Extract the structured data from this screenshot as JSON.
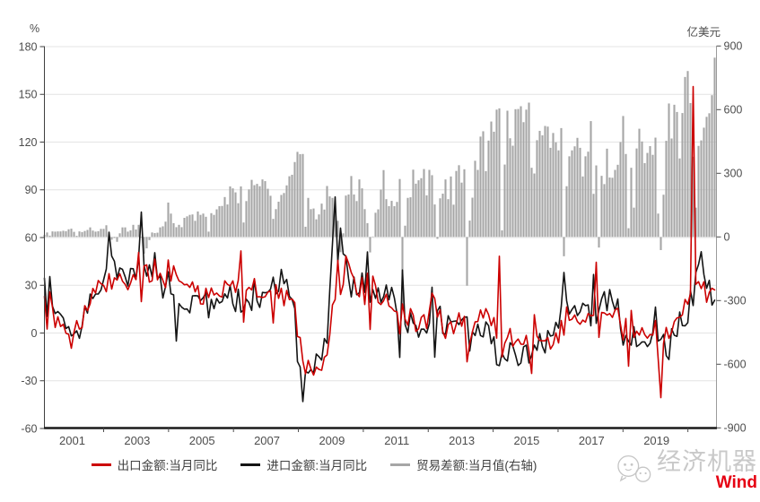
{
  "axes": {
    "left_unit": "%",
    "right_unit": "亿美元",
    "left_ticks": [
      180,
      150,
      120,
      90,
      60,
      30,
      0,
      -30,
      -60
    ],
    "right_ticks": [
      900,
      600,
      300,
      0,
      -300,
      -600,
      -900
    ],
    "x_labels": [
      "2001",
      "2003",
      "2005",
      "2007",
      "2009",
      "2011",
      "2013",
      "2015",
      "2017",
      "2019"
    ]
  },
  "watermark": {
    "brand": "经济机器",
    "vendor": "Wind"
  },
  "chart_data": {
    "type": "combo",
    "frequency": "monthly",
    "x_start": "2001-01",
    "x_end": "2021-10",
    "grid": "horizontal-only",
    "legend_position": "bottom",
    "left_axis": {
      "unit": "%",
      "min": -60,
      "max": 180,
      "tick_step": 30
    },
    "right_axis": {
      "unit": "亿美元",
      "min": -900,
      "max": 900,
      "tick_step": 300
    },
    "series": [
      {
        "name": "出口金额:当月同比",
        "key": "export-yoy",
        "type": "line",
        "axis": "left",
        "color": "#cc0000",
        "values": [
          23,
          2.5,
          25.9,
          16.2,
          3.5,
          10.2,
          4.1,
          5.5,
          -0.1,
          -0.8,
          -9.6,
          0.6,
          7.8,
          2.5,
          3.4,
          17.2,
          14.1,
          18.4,
          28,
          25.1,
          33,
          31,
          29.9,
          26,
          37.3,
          27.6,
          34.7,
          33.3,
          37.3,
          32.6,
          30.6,
          27.2,
          31.4,
          36.7,
          33.6,
          50.7,
          19.8,
          42,
          42.8,
          32,
          32.8,
          46.5,
          33.4,
          37.5,
          33.1,
          28.5,
          45.9,
          32.7,
          42.2,
          36.6,
          32.8,
          31.9,
          30.3,
          30.6,
          28.7,
          32.1,
          25.9,
          29.7,
          18.3,
          18.2,
          28.1,
          22.3,
          28.3,
          23.9,
          25.1,
          23.3,
          22.6,
          32.8,
          30.6,
          29.6,
          32.8,
          25.6,
          33,
          51.6,
          6.9,
          26.8,
          28.7,
          27.1,
          34.2,
          22.7,
          22.8,
          22.3,
          22.8,
          25.7,
          26.5,
          6.3,
          30.3,
          21.8,
          28.1,
          17.2,
          26.7,
          21,
          21.4,
          19.1,
          -2.2,
          -2.8,
          -17.5,
          -25.7,
          -17.2,
          -22.6,
          -26.4,
          -21.4,
          -22.9,
          -23.4,
          -15.2,
          -13.8,
          -1.2,
          17.7,
          21,
          45.7,
          24.2,
          30.4,
          48.4,
          43.9,
          38,
          34.3,
          25.1,
          22.8,
          34.9,
          17.9,
          37.6,
          2.3,
          35.8,
          29.8,
          19.3,
          17.9,
          20.3,
          24.4,
          17,
          15.8,
          13.8,
          13.3,
          -0.5,
          18.3,
          8.8,
          4.9,
          15.3,
          11.3,
          1,
          2.7,
          9.8,
          11.5,
          2.8,
          14,
          25,
          21.7,
          10,
          14.6,
          0.9,
          -3.3,
          5.1,
          7.1,
          -0.4,
          5.6,
          12.7,
          4.3,
          10.5,
          -18.1,
          -6.6,
          0.8,
          7,
          7.2,
          14.5,
          9.4,
          15.3,
          11.6,
          4.7,
          9.7,
          -3.2,
          48.3,
          -15,
          -6.5,
          -2.8,
          2.8,
          -8.4,
          -5.6,
          -3.8,
          -7,
          -7.1,
          -1.5,
          -11.5,
          -25.4,
          11.5,
          -2,
          -4.7,
          -4.9,
          -4.9,
          -2.8,
          -10,
          -7.3,
          0.1,
          -6.2,
          7.9,
          -1.3,
          16.4,
          8,
          8.7,
          11.3,
          7.2,
          5.5,
          8.1,
          6.9,
          12.3,
          10.9,
          11.1,
          44.5,
          -2.7,
          12.9,
          12.6,
          11.3,
          12.2,
          9.8,
          14.5,
          15.6,
          5.4,
          -4.4,
          9.1,
          -20.8,
          14.2,
          -2.7,
          1.1,
          -1.3,
          3.3,
          -1,
          -3.2,
          -0.9,
          -1.3,
          7.9,
          -16,
          -40.6,
          -6.6,
          3.5,
          -3.3,
          0.5,
          7.2,
          9.5,
          9.9,
          11.4,
          21.1,
          18.1,
          24.8,
          154.9,
          30.6,
          32.3,
          27.9,
          32.2,
          19.3,
          25.6,
          28.1,
          27.1
        ]
      },
      {
        "name": "进口金额:当月同比",
        "key": "import-yoy",
        "type": "line",
        "axis": "left",
        "color": "#141414",
        "values": [
          34.5,
          10.5,
          35.5,
          16.8,
          12.2,
          13.5,
          11.8,
          9.5,
          2.9,
          4,
          -1.8,
          -0.5,
          1.4,
          -3.3,
          4.5,
          17,
          12.5,
          24.5,
          21.7,
          24.5,
          24.5,
          27,
          33.5,
          40.3,
          63.4,
          48.3,
          45.1,
          34.4,
          40.9,
          40,
          35.3,
          29.6,
          40.5,
          40.4,
          33.9,
          47.4,
          76,
          42.5,
          35.8,
          42.8,
          35.4,
          50.5,
          34.1,
          35.8,
          22,
          29.3,
          38.5,
          24.6,
          24,
          -5,
          18.5,
          16.2,
          15,
          15.1,
          12.7,
          23.4,
          23.5,
          23.3,
          20.4,
          22.2,
          25.4,
          9.6,
          21.1,
          15.3,
          21.7,
          18.9,
          19.8,
          24.6,
          22,
          29.8,
          18.3,
          13.5,
          27.5,
          13.1,
          14.5,
          21.3,
          19.1,
          14.2,
          33.7,
          20.1,
          16.1,
          25.5,
          25.3,
          25.7,
          27.6,
          35.1,
          24.6,
          26.3,
          40,
          31,
          33.7,
          23.1,
          21.2,
          15.4,
          -17.9,
          -21.3,
          -43.1,
          -24.1,
          -25.1,
          -23,
          -25.2,
          -13.2,
          -14.9,
          -17,
          -3.5,
          -6.4,
          26.7,
          55.9,
          85.5,
          44.7,
          66,
          49.7,
          48.3,
          34.1,
          22.7,
          35.2,
          24.1,
          25.3,
          37.7,
          25.6,
          51,
          19.4,
          27.3,
          21.8,
          28.4,
          19.3,
          22.9,
          30.2,
          20.9,
          28.7,
          22.1,
          11.8,
          -15.3,
          39.6,
          5.3,
          0.3,
          12.7,
          6.3,
          4.7,
          -2.6,
          2.4,
          2.4,
          0,
          6,
          28.8,
          -15.2,
          14.1,
          16.8,
          -0.3,
          -0.7,
          10.9,
          7,
          7.4,
          7.6,
          5.3,
          8.3,
          10,
          10.1,
          -11.3,
          0.8,
          -1.6,
          5.5,
          -1.6,
          -2.4,
          7,
          4.6,
          -6.7,
          -2.4,
          -19.9,
          -20.5,
          -12.7,
          -16.2,
          -17.6,
          -6.1,
          -8.1,
          -13.8,
          -20.4,
          -18.8,
          -8.7,
          -7.6,
          -18.8,
          -13.8,
          -7.6,
          -10.9,
          -0.4,
          -8.4,
          -12.5,
          1.5,
          -1.9,
          -1.4,
          6.7,
          3.1,
          16.7,
          38.1,
          20.3,
          11.9,
          14.8,
          17.2,
          11,
          13.3,
          18.7,
          17.2,
          17.7,
          4.5,
          36.8,
          6.1,
          14.4,
          21.5,
          26,
          14.1,
          27.3,
          19.9,
          14.3,
          21.4,
          3,
          -7.6,
          -1.5,
          -5.2,
          -7.6,
          4,
          -8.5,
          -7.3,
          -5.6,
          -5.6,
          -8.5,
          -6.4,
          0.3,
          16.3,
          -5,
          -4,
          -0.9,
          -14.2,
          -16.7,
          2.7,
          -1.4,
          -2.1,
          13.2,
          4.7,
          4.5,
          6.5,
          26.6,
          17.3,
          38.1,
          43.1,
          51.1,
          36.7,
          28.1,
          33.1,
          17.6,
          20.6
        ]
      },
      {
        "name": "贸易差额:当月值(右轴)",
        "key": "trade-balance",
        "type": "bar",
        "axis": "right",
        "color": "#a6a6a6",
        "values": [
          10,
          21,
          6,
          26,
          25,
          26,
          26,
          29,
          27,
          36,
          39,
          24,
          5,
          26,
          23,
          28,
          33,
          45,
          30,
          25,
          27,
          38,
          38,
          55,
          9,
          -13,
          -5,
          -23,
          17,
          45,
          45,
          25,
          31,
          57,
          35,
          57,
          0,
          -79,
          -54,
          -15,
          21,
          18,
          20,
          45,
          50,
          72,
          162,
          110,
          65,
          46,
          57,
          46,
          90,
          97,
          104,
          106,
          76,
          120,
          104,
          110,
          95,
          25,
          112,
          104,
          130,
          145,
          146,
          188,
          153,
          238,
          229,
          210,
          159,
          238,
          68,
          169,
          224,
          269,
          244,
          250,
          239,
          271,
          263,
          227,
          194,
          85,
          131,
          166,
          198,
          207,
          243,
          286,
          293,
          353,
          401,
          390,
          391,
          48,
          184,
          131,
          134,
          83,
          106,
          157,
          129,
          240,
          191,
          184,
          142,
          76,
          -72,
          17,
          195,
          200,
          287,
          200,
          169,
          271,
          229,
          131,
          65,
          -73,
          2,
          114,
          130,
          223,
          315,
          178,
          145,
          170,
          145,
          165,
          273,
          -315,
          53,
          184,
          187,
          317,
          251,
          267,
          277,
          320,
          196,
          316,
          291,
          153,
          -9,
          182,
          204,
          271,
          178,
          285,
          152,
          311,
          338,
          256,
          319,
          -230,
          77,
          185,
          359,
          316,
          473,
          498,
          310,
          454,
          544,
          496,
          600,
          606,
          31,
          341,
          595,
          465,
          430,
          602,
          603,
          616,
          541,
          600,
          633,
          326,
          299,
          456,
          500,
          479,
          523,
          520,
          420,
          490,
          446,
          408,
          513,
          -91,
          239,
          380,
          408,
          427,
          467,
          420,
          285,
          380,
          402,
          546,
          203,
          337,
          -50,
          288,
          249,
          416,
          280,
          279,
          316,
          340,
          447,
          570,
          391,
          41,
          326,
          138,
          417,
          510,
          450,
          348,
          396,
          428,
          387,
          468,
          110,
          -62,
          199,
          453,
          629,
          464,
          623,
          589,
          370,
          584,
          754,
          782,
          631,
          378,
          138,
          429,
          455,
          515,
          566,
          583,
          668,
          845
        ]
      }
    ]
  }
}
